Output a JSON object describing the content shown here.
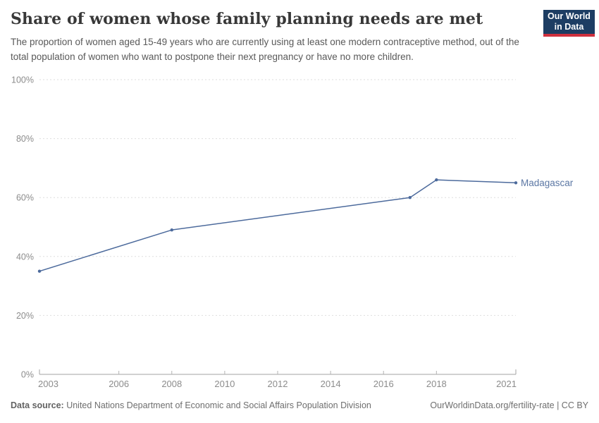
{
  "header": {
    "title": "Share of women whose family planning needs are met",
    "subtitle": "The proportion of women aged 15-49 years who are currently using at least one modern contraceptive method, out of the total population of women who want to postpone their next pregnancy or have no more children."
  },
  "logo": {
    "line1": "Our World",
    "line2": "in Data",
    "bg_color": "#1d3d63",
    "bar_color": "#cf303e"
  },
  "chart_data": {
    "type": "line",
    "title": "Share of women whose family planning needs are met",
    "x": [
      2003,
      2008,
      2017,
      2018,
      2021
    ],
    "series": [
      {
        "name": "Madagascar",
        "values": [
          35,
          49,
          60,
          66,
          65
        ],
        "color": "#4C6A9C"
      }
    ],
    "x_ticks": [
      2003,
      2006,
      2008,
      2010,
      2012,
      2014,
      2016,
      2018,
      2021
    ],
    "y_ticks": [
      0,
      20,
      40,
      60,
      80,
      100
    ],
    "y_tick_suffix": "%",
    "xlim": [
      2003,
      2021
    ],
    "ylim": [
      0,
      100
    ],
    "grid": "horizontal-dashed",
    "legend_position": "end-of-line-label",
    "point_markers": true
  },
  "footer": {
    "source_label": "Data source:",
    "source_text": " United Nations Department of Economic and Social Affairs Population Division",
    "link_text": "OurWorldinData.org/fertility-rate | CC BY"
  },
  "colors": {
    "line": "#4C6A9C",
    "entity_label": "#5b77a4",
    "grid": "#dedede",
    "axis": "#a3a3a3",
    "tick": "#b3b3b3",
    "tick_label": "#8c8c8c"
  }
}
